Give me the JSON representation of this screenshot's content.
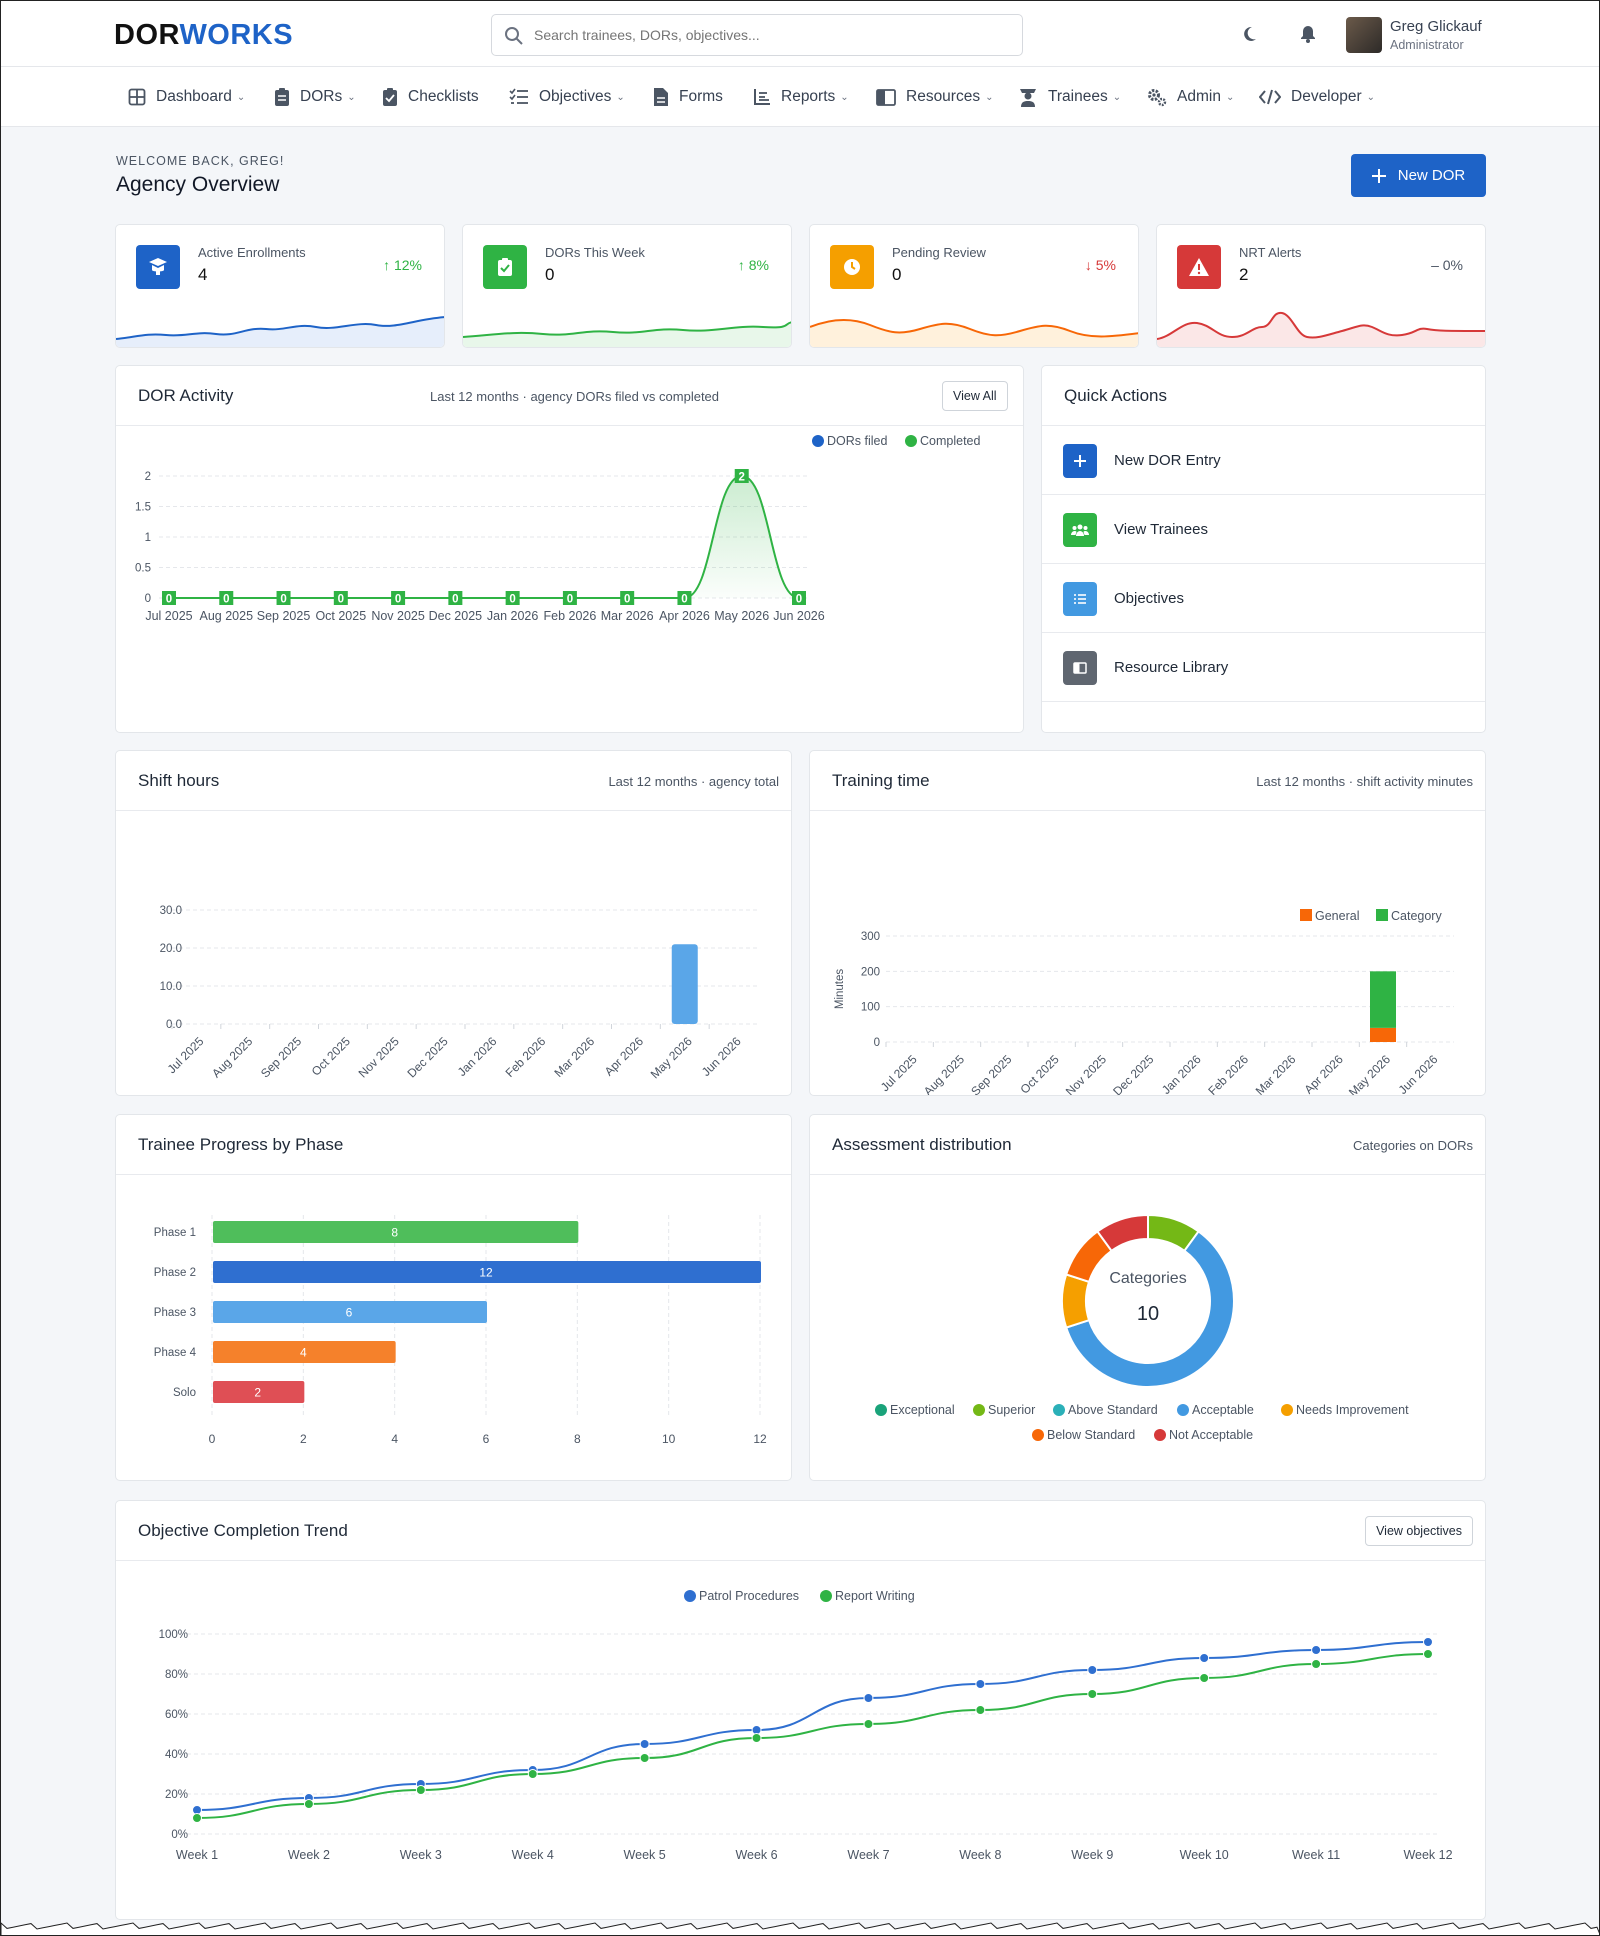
{
  "app": {
    "logo_a": "D",
    "logo_b": "O",
    "logo_c": "R",
    "logo_d": "WORKS"
  },
  "search": {
    "placeholder": "Search trainees, DORs, objectives..."
  },
  "user": {
    "name": "Greg Glickauf",
    "role": "Administrator"
  },
  "nav": [
    {
      "label": "Dashboard",
      "icon": "dashboard-icon",
      "caret": true
    },
    {
      "label": "DORs",
      "icon": "clipboard-icon",
      "caret": true
    },
    {
      "label": "Checklists",
      "icon": "checklist-icon",
      "caret": false
    },
    {
      "label": "Objectives",
      "icon": "list-icon",
      "caret": true
    },
    {
      "label": "Forms",
      "icon": "file-icon",
      "caret": false
    },
    {
      "label": "Reports",
      "icon": "report-icon",
      "caret": true
    },
    {
      "label": "Resources",
      "icon": "book-icon",
      "caret": true
    },
    {
      "label": "Trainees",
      "icon": "trainee-icon",
      "caret": true
    },
    {
      "label": "Admin",
      "icon": "gears-icon",
      "caret": true
    },
    {
      "label": "Developer",
      "icon": "code-icon",
      "caret": true
    }
  ],
  "page": {
    "welcome": "WELCOME BACK, GREG!",
    "title": "Agency Overview",
    "new_button": "New DOR"
  },
  "stats": [
    {
      "label": "Active Enrollments",
      "value": "4",
      "change": "12%",
      "direction": "up",
      "color": "#1e63c7"
    },
    {
      "label": "DORs This Week",
      "value": "0",
      "change": "8%",
      "direction": "up",
      "color": "#2fb344"
    },
    {
      "label": "Pending Review",
      "value": "0",
      "change": "5%",
      "direction": "down",
      "color": "#f59f00"
    },
    {
      "label": "NRT Alerts",
      "value": "2",
      "change": "0%",
      "direction": "flat",
      "color": "#d63939"
    }
  ],
  "dor_activity": {
    "title": "DOR Activity",
    "subtitle": "Last 12 months · agency DORs filed vs completed",
    "button": "View All"
  },
  "quick_actions": {
    "title": "Quick Actions",
    "items": [
      {
        "label": "New DOR Entry",
        "icon": "plus-icon",
        "color": "#1e63c7"
      },
      {
        "label": "View Trainees",
        "icon": "users-icon",
        "color": "#2fb344"
      },
      {
        "label": "Objectives",
        "icon": "list-icon",
        "color": "#4299e1"
      },
      {
        "label": "Resource Library",
        "icon": "book-icon",
        "color": "#5f6670"
      }
    ]
  },
  "shift_hours": {
    "title": "Shift hours",
    "subtitle": "Last 12 months · agency total"
  },
  "training_time": {
    "title": "Training time",
    "subtitle": "Last 12 months · shift activity minutes"
  },
  "trainee_progress": {
    "title": "Trainee Progress by Phase"
  },
  "assessment": {
    "title": "Assessment distribution",
    "subtitle": "Categories on DORs",
    "center_label": "Categories",
    "center_value": "10"
  },
  "objective_trend": {
    "title": "Objective Completion Trend",
    "button": "View objectives"
  },
  "chart_data": [
    {
      "id": "dor_activity",
      "type": "line",
      "x": [
        "Jul 2025",
        "Aug 2025",
        "Sep 2025",
        "Oct 2025",
        "Nov 2025",
        "Dec 2025",
        "Jan 2026",
        "Feb 2026",
        "Mar 2026",
        "Apr 2026",
        "May 2026",
        "Jun 2026"
      ],
      "series": [
        {
          "name": "DORs filed",
          "color": "#1e63c7",
          "values": [
            0,
            0,
            0,
            0,
            0,
            0,
            0,
            0,
            0,
            0,
            0,
            0
          ]
        },
        {
          "name": "Completed",
          "color": "#2fb344",
          "values": [
            0,
            0,
            0,
            0,
            0,
            0,
            0,
            0,
            0,
            0,
            2,
            0
          ]
        }
      ],
      "yticks": [
        "0",
        "0.5",
        "1",
        "1.5",
        "2"
      ],
      "ylim": [
        0,
        2
      ],
      "legend": "top-right",
      "grid": true
    },
    {
      "id": "shift_hours",
      "type": "bar",
      "categories": [
        "Jul 2025",
        "Aug 2025",
        "Sep 2025",
        "Oct 2025",
        "Nov 2025",
        "Dec 2025",
        "Jan 2026",
        "Feb 2026",
        "Mar 2026",
        "Apr 2026",
        "May 2026",
        "Jun 2026"
      ],
      "values": [
        0,
        0,
        0,
        0,
        0,
        0,
        0,
        0,
        0,
        0,
        21,
        0
      ],
      "color": "#5aa6e8",
      "yticks": [
        "0.0",
        "10.0",
        "20.0",
        "30.0"
      ],
      "ylim": [
        0,
        30
      ],
      "grid": true
    },
    {
      "id": "training_time",
      "type": "bar",
      "stacked": true,
      "categories": [
        "Jul 2025",
        "Aug 2025",
        "Sep 2025",
        "Oct 2025",
        "Nov 2025",
        "Dec 2025",
        "Jan 2026",
        "Feb 2026",
        "Mar 2026",
        "Apr 2026",
        "May 2026",
        "Jun 2026"
      ],
      "series": [
        {
          "name": "General",
          "color": "#f76707",
          "values": [
            0,
            0,
            0,
            0,
            0,
            0,
            0,
            0,
            0,
            0,
            40,
            0
          ]
        },
        {
          "name": "Category",
          "color": "#2fb344",
          "values": [
            0,
            0,
            0,
            0,
            0,
            0,
            0,
            0,
            0,
            0,
            160,
            0
          ]
        }
      ],
      "ylabel": "Minutes",
      "yticks": [
        "0",
        "100",
        "200",
        "300"
      ],
      "ylim": [
        0,
        300
      ],
      "legend": "top-right",
      "grid": true
    },
    {
      "id": "trainee_progress",
      "type": "bar",
      "orientation": "horizontal",
      "categories": [
        "Phase 1",
        "Phase 2",
        "Phase 3",
        "Phase 4",
        "Solo"
      ],
      "values": [
        8,
        12,
        6,
        4,
        2
      ],
      "colors": [
        "#4fbe5b",
        "#2f6fd0",
        "#5aa6e8",
        "#f5812b",
        "#df4f55"
      ],
      "xticks": [
        "0",
        "2",
        "4",
        "6",
        "8",
        "10",
        "12"
      ],
      "xlim": [
        0,
        12
      ],
      "grid": true
    },
    {
      "id": "assessment",
      "type": "pie",
      "donut": true,
      "labels": [
        "Exceptional",
        "Superior",
        "Above Standard",
        "Acceptable",
        "Needs Improvement",
        "Below Standard",
        "Not Acceptable"
      ],
      "colors": [
        "#1aa37a",
        "#74b816",
        "#2bb0b8",
        "#4299e1",
        "#f59f00",
        "#f76707",
        "#d63939"
      ],
      "values": [
        0,
        1,
        0,
        6,
        1,
        1,
        1
      ]
    },
    {
      "id": "objective_trend",
      "type": "line",
      "x": [
        "Week 1",
        "Week 2",
        "Week 3",
        "Week 4",
        "Week 5",
        "Week 6",
        "Week 7",
        "Week 8",
        "Week 9",
        "Week 10",
        "Week 11",
        "Week 12"
      ],
      "series": [
        {
          "name": "Patrol Procedures",
          "color": "#2f6fd0",
          "values": [
            12,
            18,
            25,
            32,
            45,
            52,
            68,
            75,
            82,
            88,
            92,
            96
          ]
        },
        {
          "name": "Report Writing",
          "color": "#2fb344",
          "values": [
            8,
            15,
            22,
            30,
            38,
            48,
            55,
            62,
            70,
            78,
            85,
            90
          ]
        }
      ],
      "yticks": [
        "0%",
        "20%",
        "40%",
        "60%",
        "80%",
        "100%"
      ],
      "ylim": [
        0,
        100
      ],
      "legend": "top-center",
      "grid": true
    }
  ]
}
